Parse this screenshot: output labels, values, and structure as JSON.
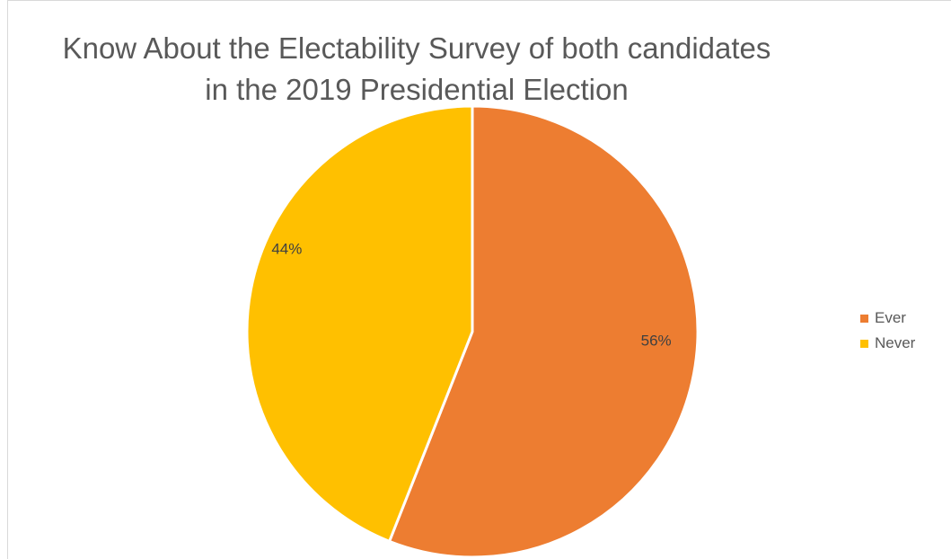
{
  "chart_data": {
    "type": "pie",
    "title_lines": [
      "Know About the Electability Survey of both candidates",
      "in the 2019 Presidential Election"
    ],
    "categories": [
      "Ever",
      "Never"
    ],
    "values": [
      56,
      44
    ],
    "data_labels": [
      "56%",
      "44%"
    ],
    "colors": [
      "#ED7D31",
      "#FFC000"
    ],
    "legend_position": "right"
  }
}
